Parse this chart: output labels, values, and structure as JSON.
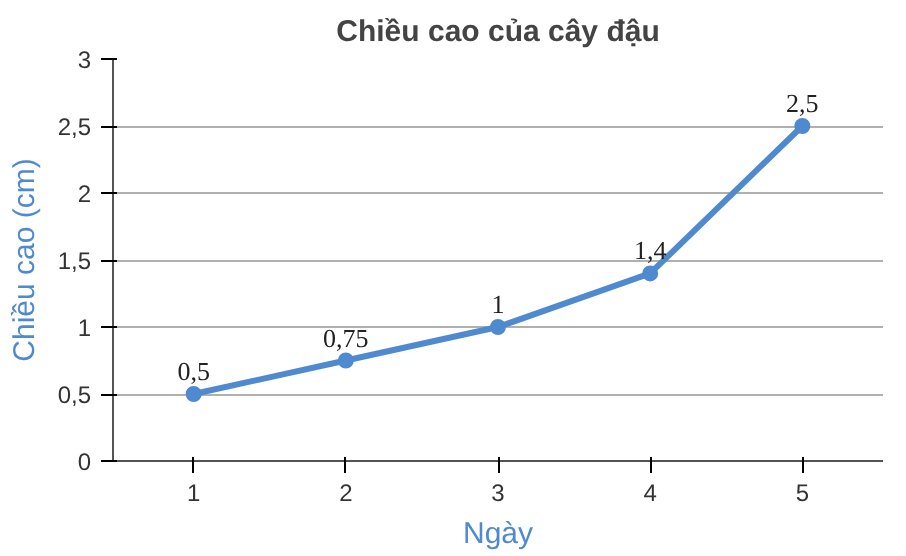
{
  "chart_data": {
    "type": "line",
    "title": "Chiều cao của cây đậu",
    "xlabel": "Ngày",
    "ylabel": "Chiều cao (cm)",
    "categories": [
      "1",
      "2",
      "3",
      "4",
      "5"
    ],
    "series": [
      {
        "color": "#4f8ad0",
        "values": [
          0.5,
          0.75,
          1,
          1.4,
          2.5
        ],
        "value_labels": [
          "0,5",
          "0,75",
          "1",
          "1,4",
          "2,5"
        ]
      }
    ],
    "ylim": [
      0,
      3
    ],
    "yticks": [
      0,
      {
        "value": 0.5,
        "label": "0,5"
      },
      1,
      {
        "value": 1.5,
        "label": "1,5"
      },
      2,
      {
        "value": 2.5,
        "label": "2,5"
      },
      3
    ],
    "grid": "y",
    "marker": "circle",
    "line_style": "solid"
  }
}
